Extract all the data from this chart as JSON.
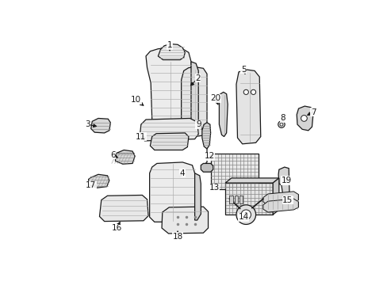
{
  "background_color": "#ffffff",
  "line_color": "#1a1a1a",
  "fill_light": "#f0f0f0",
  "fill_mid": "#e0e0e0",
  "fill_dark": "#cccccc",
  "hatch_color": "#888888",
  "figsize": [
    4.89,
    3.6
  ],
  "dpi": 100,
  "callouts": [
    [
      "1",
      197,
      18,
      197,
      32
    ],
    [
      "2",
      243,
      72,
      228,
      88
    ],
    [
      "10",
      142,
      108,
      158,
      120
    ],
    [
      "3",
      62,
      148,
      82,
      152
    ],
    [
      "11",
      150,
      168,
      162,
      172
    ],
    [
      "9",
      244,
      148,
      252,
      160
    ],
    [
      "20",
      272,
      105,
      278,
      120
    ],
    [
      "5",
      318,
      58,
      322,
      70
    ],
    [
      "8",
      382,
      138,
      382,
      148
    ],
    [
      "7",
      432,
      128,
      418,
      135
    ],
    [
      "6",
      104,
      198,
      116,
      205
    ],
    [
      "4",
      218,
      228,
      210,
      238
    ],
    [
      "12",
      262,
      200,
      272,
      205
    ],
    [
      "19",
      388,
      240,
      384,
      242
    ],
    [
      "17",
      68,
      248,
      82,
      248
    ],
    [
      "16",
      110,
      318,
      118,
      304
    ],
    [
      "18",
      210,
      332,
      210,
      318
    ],
    [
      "13",
      270,
      252,
      282,
      255
    ],
    [
      "14",
      318,
      300,
      316,
      294
    ],
    [
      "15",
      390,
      272,
      376,
      272
    ]
  ]
}
